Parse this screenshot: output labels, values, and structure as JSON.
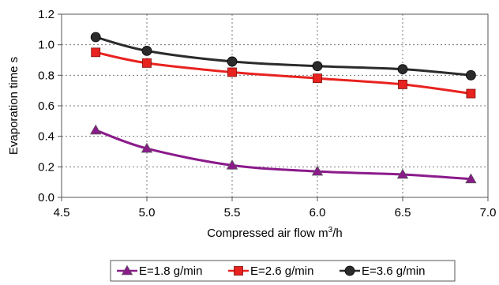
{
  "chart_data": {
    "type": "line",
    "xlabel_main": "Compressed air flow m",
    "xlabel_sup": "3",
    "xlabel_tail": "/h",
    "ylabel": "Evaporation time s",
    "xlim": [
      4.5,
      7.0
    ],
    "ylim": [
      0.0,
      1.2
    ],
    "x_ticks": [
      "4.5",
      "5.0",
      "5.5",
      "6.0",
      "6.5",
      "7.0"
    ],
    "y_ticks": [
      "0.0",
      "0.2",
      "0.4",
      "0.6",
      "0.8",
      "1.0",
      "1.2"
    ],
    "grid": true,
    "legend_position": "bottom",
    "series": [
      {
        "name": "E=1.8 g/min",
        "color": "#8B1A8B",
        "marker": "triangle",
        "x": [
          4.7,
          5.0,
          5.5,
          6.0,
          6.5,
          6.9
        ],
        "y": [
          0.44,
          0.32,
          0.21,
          0.17,
          0.15,
          0.12
        ]
      },
      {
        "name": "E=2.6 g/min",
        "color": "#E8221F",
        "marker": "square",
        "x": [
          4.7,
          5.0,
          5.5,
          6.0,
          6.5,
          6.9
        ],
        "y": [
          0.95,
          0.88,
          0.82,
          0.78,
          0.74,
          0.68
        ]
      },
      {
        "name": "E=3.6 g/min",
        "color": "#2B2B2B",
        "marker": "circle",
        "x": [
          4.7,
          5.0,
          5.5,
          6.0,
          6.5,
          6.9
        ],
        "y": [
          1.05,
          0.96,
          0.89,
          0.86,
          0.84,
          0.8
        ]
      }
    ]
  }
}
